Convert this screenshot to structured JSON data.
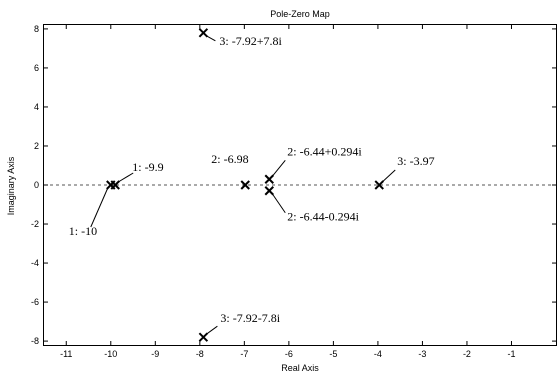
{
  "chart_data": {
    "type": "scatter",
    "title": "Pole-Zero Map",
    "xlabel": "Real Axis",
    "ylabel": "Imaginary Axis",
    "xlim": [
      -11.5,
      0
    ],
    "ylim": [
      -8.2,
      8.2
    ],
    "x_ticks": [
      -11,
      -10,
      -9,
      -8,
      -7,
      -6,
      -5,
      -4,
      -3,
      -2,
      -1
    ],
    "y_ticks": [
      -8,
      -6,
      -4,
      -2,
      0,
      2,
      4,
      6,
      8
    ],
    "grid": false,
    "zero_line": "dashed",
    "marker": "x",
    "points": [
      {
        "x": -10,
        "y": 0,
        "label": "1: -10"
      },
      {
        "x": -9.9,
        "y": 0,
        "label": "1: -9.9"
      },
      {
        "x": -6.98,
        "y": 0,
        "label": "2: -6.98"
      },
      {
        "x": -6.44,
        "y": 0.294,
        "label": "2: -6.44+0.294i"
      },
      {
        "x": -6.44,
        "y": -0.294,
        "label": "2: -6.44-0.294i"
      },
      {
        "x": -3.97,
        "y": 0,
        "label": "3: -3.97"
      },
      {
        "x": -7.92,
        "y": 7.8,
        "label": "3: -7.92+7.8i"
      },
      {
        "x": -7.92,
        "y": -7.8,
        "label": "3: -7.92-7.8i"
      }
    ]
  }
}
